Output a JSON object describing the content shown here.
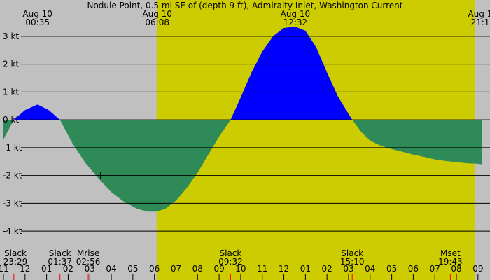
{
  "title": "Nodule Point, 0.5 mi SE of (depth 9 ft), Admiralty Inlet, Washington Current",
  "colors": {
    "background": "#c0c0c0",
    "daylight": "#cccc00",
    "flood": "#0000ff",
    "ebb": "#2e8b57",
    "gridline": "#000000",
    "tick_mark": "#ff0000"
  },
  "chart_data": {
    "type": "area",
    "units": "kt",
    "ylim": [
      -4.3,
      3.3
    ],
    "xlim": [
      -1.0,
      21.2
    ],
    "y_ticks": [
      3,
      2,
      1,
      0,
      -1,
      -2,
      -3,
      -4
    ],
    "y_tick_labels": [
      "3 kt",
      "2 kt",
      "1 kt",
      "0 kt",
      "-1 kt",
      "-2 kt",
      "-3 kt",
      "-4 kt"
    ],
    "x_tick_labels": [
      "11",
      "12",
      "01",
      "02",
      "03",
      "04",
      "05",
      "06",
      "07",
      "08",
      "09",
      "10",
      "11",
      "12",
      "01",
      "02",
      "03",
      "04",
      "05",
      "06",
      "07",
      "08",
      "09"
    ],
    "x_tick_hours": [
      -1,
      0,
      1,
      2,
      3,
      4,
      5,
      6,
      7,
      8,
      9,
      10,
      11,
      12,
      13,
      14,
      15,
      16,
      17,
      18,
      19,
      20,
      21
    ],
    "daylight": {
      "start_hour": 6.1,
      "end_hour": 20.85
    },
    "top_labels": [
      {
        "date": "Aug 10",
        "time": "00:35",
        "hour": 0.58
      },
      {
        "date": "Aug 10",
        "time": "06:08",
        "hour": 6.13
      },
      {
        "date": "Aug 10",
        "time": "12:32",
        "hour": 12.53
      },
      {
        "date": "Aug 1",
        "time": "21:1",
        "hour": 21.1
      }
    ],
    "bottom_events": [
      {
        "label": "Slack",
        "time": "23:29",
        "hour": -0.52
      },
      {
        "label": "Slack",
        "time": "01:37",
        "hour": 1.62
      },
      {
        "label": "Mrise",
        "time": "02:56",
        "hour": 2.93
      },
      {
        "label": "Slack",
        "time": "09:32",
        "hour": 9.53
      },
      {
        "label": "Slack",
        "time": "15:10",
        "hour": 15.17
      },
      {
        "label": "Mset",
        "time": "19:43",
        "hour": 19.72
      }
    ],
    "marker": {
      "hour": 3.5,
      "value": -2.0
    },
    "series": [
      {
        "x": [
          -1.0,
          -0.52,
          0.0,
          0.58,
          1.1,
          1.62,
          2.2,
          2.8,
          3.4,
          4.0,
          4.6,
          5.2,
          5.7,
          6.1,
          6.5,
          7.0,
          7.5,
          8.0,
          8.5,
          9.0,
          9.53,
          10.0,
          10.5,
          11.0,
          11.5,
          12.0,
          12.53,
          13.0,
          13.5,
          14.0,
          14.5,
          15.17,
          15.6,
          16.0,
          16.5,
          17.0,
          17.5,
          18.0,
          18.5,
          19.0,
          19.5,
          20.0,
          20.5,
          21.0,
          21.2
        ],
        "y": [
          -0.7,
          0.0,
          0.35,
          0.55,
          0.35,
          0.0,
          -0.85,
          -1.55,
          -2.1,
          -2.6,
          -2.95,
          -3.2,
          -3.3,
          -3.3,
          -3.2,
          -2.9,
          -2.45,
          -1.9,
          -1.25,
          -0.6,
          0.0,
          0.8,
          1.7,
          2.45,
          3.0,
          3.3,
          3.35,
          3.2,
          2.6,
          1.7,
          0.85,
          0.0,
          -0.45,
          -0.75,
          -0.93,
          -1.05,
          -1.15,
          -1.25,
          -1.33,
          -1.42,
          -1.48,
          -1.52,
          -1.56,
          -1.58,
          -1.6
        ]
      }
    ]
  }
}
